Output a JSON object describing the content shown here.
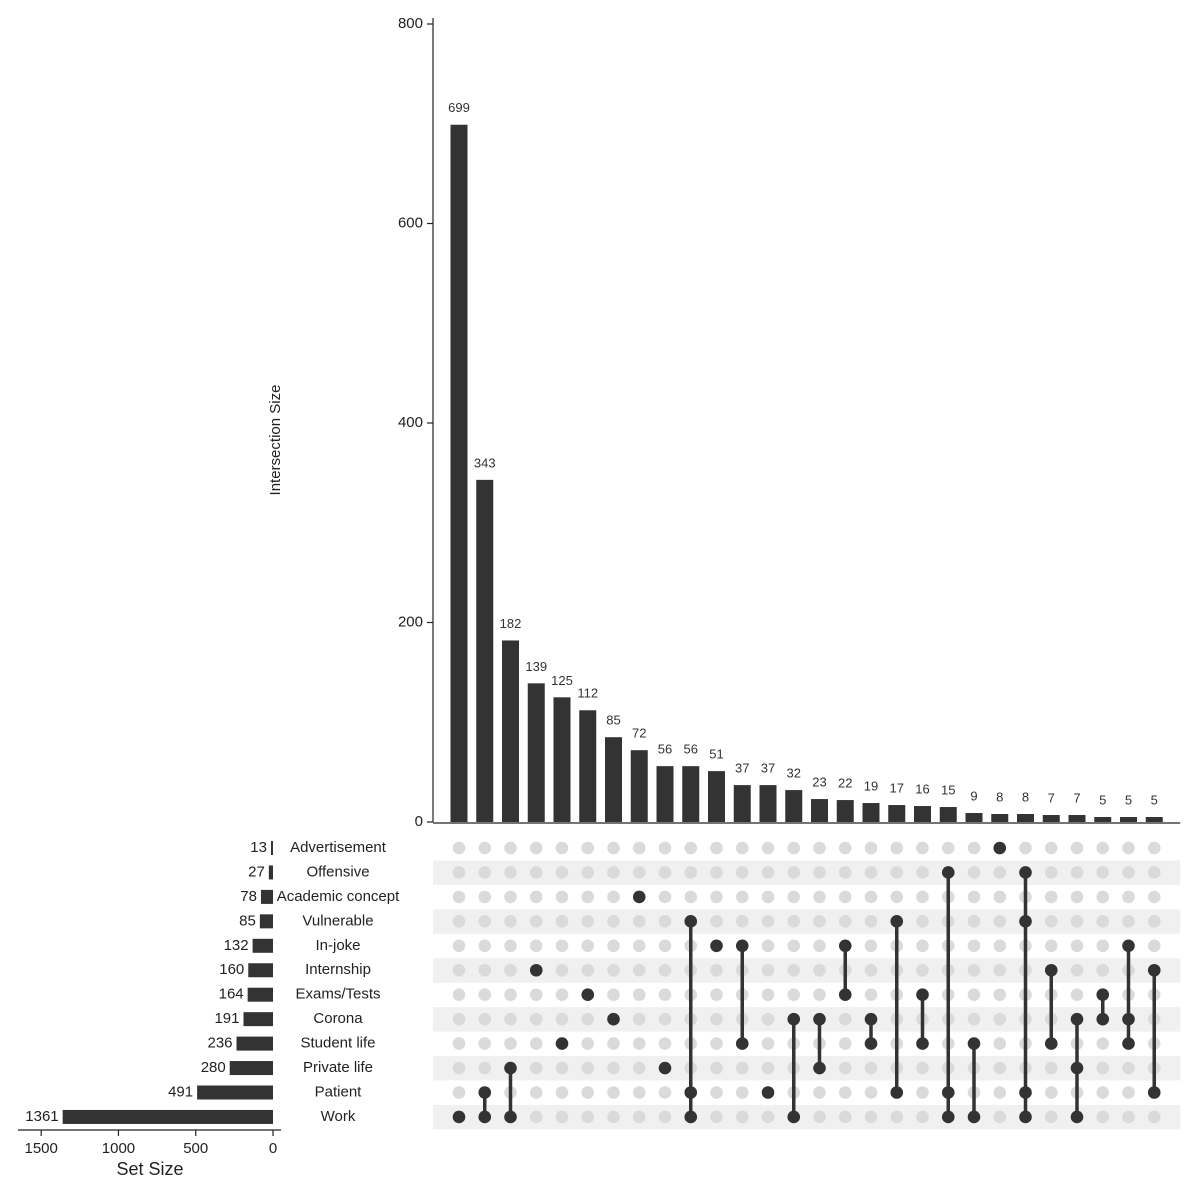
{
  "chart_data": {
    "type": "upset",
    "ylabel": "Intersection Size",
    "ylim": [
      0,
      800
    ],
    "yticks": [
      0,
      200,
      400,
      600,
      800
    ],
    "values": [
      699,
      343,
      182,
      139,
      125,
      112,
      85,
      72,
      56,
      56,
      51,
      37,
      37,
      32,
      23,
      22,
      19,
      17,
      16,
      15,
      9,
      8,
      8,
      7,
      7,
      5,
      5,
      5
    ],
    "members": [
      [
        "Work"
      ],
      [
        "Patient",
        "Work"
      ],
      [
        "Private life",
        "Work"
      ],
      [
        "Internship"
      ],
      [
        "Student life"
      ],
      [
        "Exams/Tests"
      ],
      [
        "Corona"
      ],
      [
        "Academic concept"
      ],
      [
        "Private life"
      ],
      [
        "Vulnerable",
        "Patient",
        "Work"
      ],
      [
        "In-joke"
      ],
      [
        "In-joke",
        "Student life"
      ],
      [
        "Patient"
      ],
      [
        "Corona",
        "Work"
      ],
      [
        "Corona",
        "Private life"
      ],
      [
        "In-joke",
        "Exams/Tests"
      ],
      [
        "Corona",
        "Student life"
      ],
      [
        "Vulnerable",
        "Patient"
      ],
      [
        "Exams/Tests",
        "Student life"
      ],
      [
        "Offensive",
        "Patient",
        "Work"
      ],
      [
        "Student life",
        "Work"
      ],
      [
        "Advertisement"
      ],
      [
        "Offensive",
        "Vulnerable",
        "Patient",
        "Work"
      ],
      [
        "Internship",
        "Student life"
      ],
      [
        "Corona",
        "Private life",
        "Work"
      ],
      [
        "Exams/Tests",
        "Corona"
      ],
      [
        "In-joke",
        "Corona",
        "Student life"
      ],
      [
        "Internship",
        "Patient"
      ]
    ],
    "color": "#333333",
    "sets": [
      "Advertisement",
      "Offensive",
      "Academic concept",
      "Vulnerable",
      "In-joke",
      "Internship",
      "Exams/Tests",
      "Corona",
      "Student life",
      "Private life",
      "Patient",
      "Work"
    ],
    "set_sizes": [
      13,
      27,
      78,
      85,
      132,
      160,
      164,
      191,
      236,
      280,
      491,
      1361
    ],
    "xlabel": "Set Size",
    "xlim": [
      0,
      1650
    ],
    "xticks": [
      0,
      500,
      1000,
      1500
    ]
  }
}
